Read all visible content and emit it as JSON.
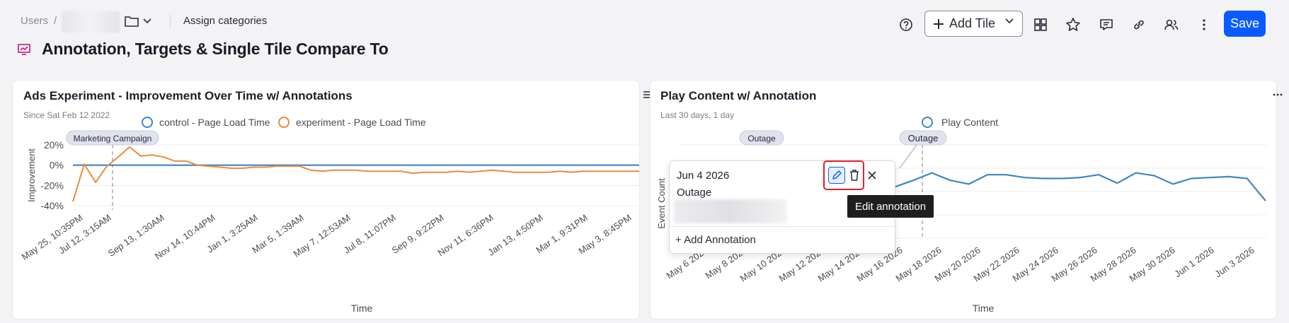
{
  "breadcrumb": {
    "users": "Users",
    "separator": "/",
    "assign": "Assign categories"
  },
  "page": {
    "title": "Annotation, Targets & Single Tile Compare To"
  },
  "toolbar": {
    "add_tile": "Add Tile",
    "save": "Save",
    "icons": [
      "help-icon",
      "layout-icon",
      "star-icon",
      "comment-icon",
      "link-icon",
      "users-icon",
      "more-icon"
    ]
  },
  "colors": {
    "accent": "#0a5bff",
    "control": "#3f84c6",
    "experiment": "#ed8a3b",
    "highlight": "#e0202a"
  },
  "tile1": {
    "title": "Ads Experiment - Improvement Over Time w/ Annotations",
    "subtitle": "Since Sat Feb 12 2022",
    "legend": [
      "control - Page Load Time",
      "experiment - Page Load Time"
    ],
    "annotation": "Marketing Campaign",
    "xlabel": "Time",
    "ylabel": "Improvement"
  },
  "tile2": {
    "title": "Play Content w/ Annotation",
    "subtitle": "Last 30 days, 1 day",
    "legend": [
      "Play Content"
    ],
    "annotations": [
      "Outage",
      "Outage"
    ],
    "xlabel": "Time",
    "ylabel": "Event Count"
  },
  "popup": {
    "date": "Jun 4 2026",
    "label": "Outage",
    "add": "+ Add Annotation",
    "tooltip": "Edit annotation"
  },
  "chart_data": [
    {
      "type": "line",
      "title": "Ads Experiment - Improvement Over Time w/ Annotations",
      "xlabel": "Time",
      "ylabel": "Improvement",
      "ylim": [
        -40,
        20
      ],
      "yticks": [
        "20%",
        "0%",
        "-20%",
        "-40%"
      ],
      "x_ticks": [
        "May 25, 10:35PM",
        "Jul 12, 3:15AM",
        "Sep 13, 1:30AM",
        "Nov 14, 10:44PM",
        "Jan 1, 3:25AM",
        "Mar 5, 1:39AM",
        "May 7, 12:53AM",
        "Jul 8, 11:07PM",
        "Sep 9, 9:22PM",
        "Nov 11, 6:36PM",
        "Jan 13, 4:50PM",
        "Mar 1, 9:31PM",
        "May 3, 8:45PM"
      ],
      "legend_position": "top-center",
      "series": [
        {
          "name": "control - Page Load Time",
          "values": [
            0,
            0,
            0,
            0,
            0,
            0,
            0,
            0,
            0,
            0,
            0,
            0,
            0,
            0,
            0,
            0,
            0,
            0,
            0,
            0,
            0,
            0,
            0,
            0,
            0,
            0,
            0,
            0,
            0,
            0,
            0,
            0,
            0,
            0,
            0,
            0,
            0,
            0,
            0,
            0,
            0,
            0,
            0,
            0,
            0,
            0,
            0,
            0,
            0,
            0,
            0
          ]
        },
        {
          "name": "experiment - Page Load Time",
          "values": [
            -36,
            1,
            -17,
            -1,
            8,
            18,
            9,
            10,
            8,
            4,
            4,
            0,
            -1,
            -2,
            -3,
            -3,
            -2,
            -2,
            -1,
            -1,
            -1,
            -5,
            -6,
            -5,
            -5,
            -5,
            -6,
            -6,
            -6,
            -6,
            -8,
            -7,
            -7,
            -7,
            -6,
            -7,
            -6,
            -5,
            -6,
            -7,
            -7,
            -7,
            -7,
            -6,
            -7,
            -6,
            -6,
            -6,
            -6,
            -6,
            -6
          ]
        }
      ],
      "annotation_labels": [
        "Marketing Campaign"
      ]
    },
    {
      "type": "line",
      "title": "Play Content w/ Annotation",
      "xlabel": "Time",
      "ylabel": "Event Count",
      "x_ticks": [
        "May 6 2026",
        "May 8 2026",
        "May 10 2026",
        "May 12 2026",
        "May 14 2026",
        "May 16 2026",
        "May 18 2026",
        "May 20 2026",
        "May 22 2026",
        "May 24 2026",
        "May 26 2026",
        "May 28 2026",
        "May 30 2026",
        "Jun 1 2026",
        "Jun 3 2026"
      ],
      "legend_position": "top-center",
      "series": [
        {
          "name": "Play Content",
          "values_visible_tail": [
            0.55,
            0.62,
            0.7,
            0.62,
            0.58,
            0.68,
            0.68,
            0.65,
            0.64,
            0.64,
            0.65,
            0.68,
            0.59,
            0.7,
            0.67,
            0.58,
            0.64,
            0.65,
            0.66,
            0.64,
            0.4
          ]
        }
      ],
      "annotation_labels": [
        "Outage",
        "Outage"
      ]
    }
  ]
}
